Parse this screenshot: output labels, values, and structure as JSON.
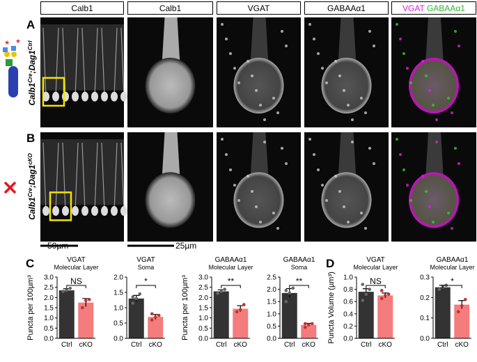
{
  "headers": [
    "Calb1",
    "Calb1",
    "VGAT",
    "GABAAα1"
  ],
  "merged_header": {
    "magenta": "VGAT",
    "green": "GABAAα1"
  },
  "rows": [
    {
      "letter": "A",
      "gene1": "Calb1",
      "sup1": "Cre",
      "gene2": ";Dag1",
      "sup2": "Ctrl"
    },
    {
      "letter": "B",
      "gene1": "Calb1",
      "sup1": "Cre",
      "gene2": ";Dag1",
      "sup2": "cKO"
    }
  ],
  "scale_bars": [
    "50µm",
    "25µm"
  ],
  "panel_letters": [
    "C",
    "D"
  ],
  "chart_data": [
    {
      "type": "bar",
      "title": "VGAT",
      "subtitle": "Molecular Layer",
      "y_label": "Puncta per 100µm³",
      "categories": [
        "Ctrl",
        "cKO"
      ],
      "colors": [
        "#333333",
        "#f47c7c"
      ],
      "values": [
        2.35,
        1.75
      ],
      "errors": [
        0.08,
        0.2
      ],
      "points": [
        [
          2.3,
          2.35,
          2.45
        ],
        [
          1.5,
          1.85,
          1.9
        ]
      ],
      "significance": "NS",
      "ylim": [
        0,
        3
      ],
      "yticks": [
        {
          "value": 0,
          "label": "0.0"
        },
        0.5,
        {
          "value": 1,
          "label": "1.0"
        },
        1.5,
        {
          "value": 2,
          "label": "2.0"
        },
        2.5,
        {
          "value": 3,
          "label": "3.0"
        }
      ]
    },
    {
      "type": "bar",
      "title": "VGAT",
      "subtitle": "Soma",
      "categories": [
        "Ctrl",
        "cKO"
      ],
      "colors": [
        "#333333",
        "#f47c7c"
      ],
      "values": [
        1.3,
        0.7
      ],
      "errors": [
        0.1,
        0.08
      ],
      "points": [
        [
          1.15,
          1.3,
          1.45,
          1.35
        ],
        [
          0.6,
          0.7,
          0.75,
          0.8
        ]
      ],
      "significance": "*",
      "ylim": [
        0,
        2
      ],
      "yticks": [
        {
          "value": 0,
          "label": "0.0"
        },
        0.5,
        {
          "value": 1,
          "label": "1.0"
        },
        1.5,
        {
          "value": 2,
          "label": "2.0"
        }
      ]
    },
    {
      "type": "bar",
      "title": "GABAAα1",
      "subtitle": "Molecular Layer",
      "y_label": "Puncta per 100µm³",
      "categories": [
        "Ctrl",
        "cKO"
      ],
      "colors": [
        "#333333",
        "#f47c7c"
      ],
      "values": [
        2.3,
        1.45
      ],
      "errors": [
        0.08,
        0.15
      ],
      "points": [
        [
          2.2,
          2.3,
          2.4
        ],
        [
          1.3,
          1.4,
          1.65
        ]
      ],
      "significance": "**",
      "ylim": [
        0,
        3
      ],
      "yticks": [
        {
          "value": 0,
          "label": "0.0"
        },
        0.5,
        {
          "value": 1,
          "label": "1.0"
        },
        1.5,
        {
          "value": 2,
          "label": "2.0"
        },
        2.5,
        {
          "value": 3,
          "label": "3.0"
        }
      ]
    },
    {
      "type": "bar",
      "title": "GABAAα1",
      "subtitle": "Soma",
      "categories": [
        "Ctrl",
        "cKO"
      ],
      "colors": [
        "#333333",
        "#f47c7c"
      ],
      "values": [
        1.85,
        0.55
      ],
      "errors": [
        0.18,
        0.06
      ],
      "points": [
        [
          1.5,
          1.85,
          2.05,
          1.95
        ],
        [
          0.45,
          0.55,
          0.6,
          0.6
        ]
      ],
      "significance": "**",
      "ylim": [
        0,
        2.5
      ],
      "yticks": [
        {
          "value": 0,
          "label": "0.0"
        },
        0.5,
        {
          "value": 1,
          "label": "1.0"
        },
        1.5,
        {
          "value": 2,
          "label": "2.0"
        },
        2.5
      ]
    },
    {
      "type": "bar",
      "title": "VGAT",
      "subtitle": "Molecular Layer",
      "y_label": "Puncta Volume (µm³)",
      "categories": [
        "Ctrl",
        "cKO"
      ],
      "colors": [
        "#333333",
        "#f47c7c"
      ],
      "values": [
        0.76,
        0.7
      ],
      "errors": [
        0.05,
        0.04
      ],
      "points": [
        [
          0.62,
          0.72,
          0.8,
          0.88
        ],
        [
          0.65,
          0.7,
          0.72,
          0.78
        ]
      ],
      "significance": "NS",
      "ylim": [
        0,
        1
      ],
      "yticks": [
        {
          "value": 0,
          "label": "0.0"
        },
        0.2,
        0.4,
        0.6,
        0.8,
        {
          "value": 1,
          "label": "1.0"
        }
      ]
    },
    {
      "type": "bar",
      "title": "GABAAα1",
      "subtitle": "Molecular Layer",
      "categories": [
        "Ctrl",
        "cKO"
      ],
      "colors": [
        "#333333",
        "#f47c7c"
      ],
      "values": [
        0.25,
        0.165
      ],
      "errors": [
        0.01,
        0.02
      ],
      "points": [
        [
          0.24,
          0.25,
          0.26
        ],
        [
          0.13,
          0.16,
          0.19
        ]
      ],
      "significance": "*",
      "ylim": [
        0,
        0.3
      ],
      "yticks": [
        {
          "value": 0,
          "label": "0.0"
        },
        0.1,
        0.2,
        0.3
      ]
    }
  ]
}
